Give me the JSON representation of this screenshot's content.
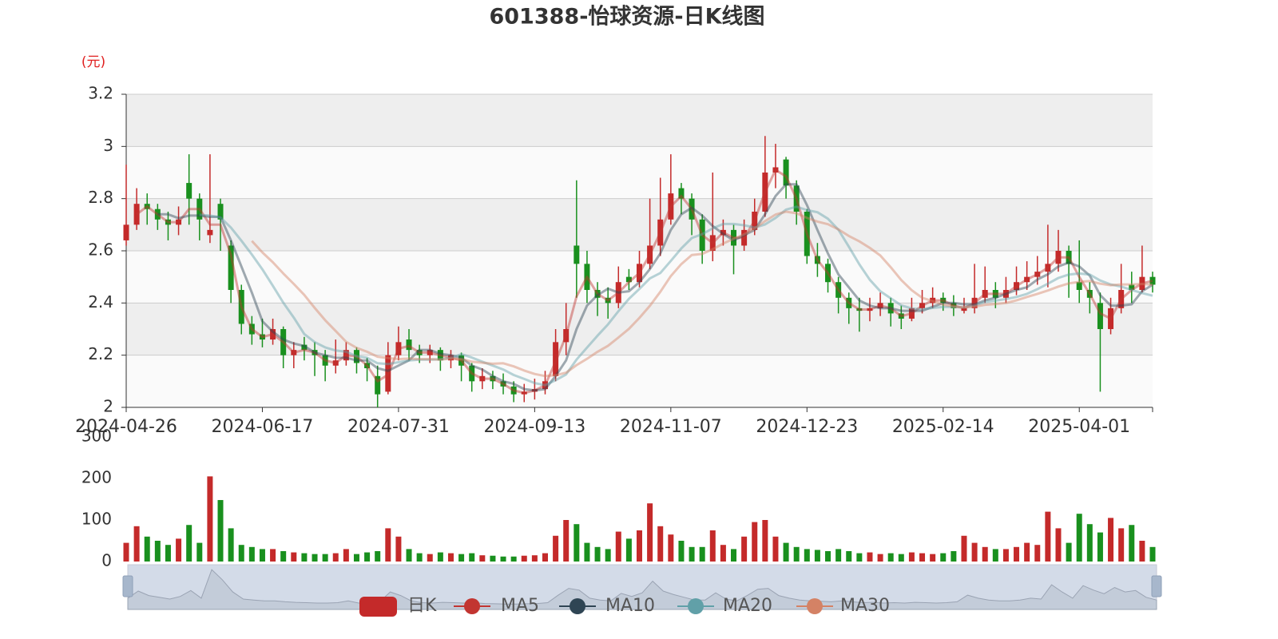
{
  "chart_data": {
    "type": "candlestick",
    "title": "601388-怡球资源-日K线图",
    "y_label": "(元)",
    "categories": [
      "2024-04-26",
      null,
      null,
      null,
      null,
      null,
      null,
      null,
      null,
      null,
      null,
      null,
      null,
      "2024-06-17",
      null,
      null,
      null,
      null,
      null,
      null,
      null,
      null,
      null,
      null,
      null,
      null,
      "2024-07-31",
      null,
      null,
      null,
      null,
      null,
      null,
      null,
      null,
      null,
      null,
      null,
      null,
      "2024-09-13",
      null,
      null,
      null,
      null,
      null,
      null,
      null,
      null,
      null,
      null,
      null,
      null,
      "2024-11-07",
      null,
      null,
      null,
      null,
      null,
      null,
      null,
      null,
      null,
      null,
      null,
      null,
      "2024-12-23",
      null,
      null,
      null,
      null,
      null,
      null,
      null,
      null,
      null,
      null,
      null,
      null,
      "2025-02-14",
      null,
      null,
      null,
      null,
      null,
      null,
      null,
      null,
      null,
      null,
      null,
      null,
      "2025-04-01",
      null,
      null,
      null,
      null,
      null,
      null,
      null
    ],
    "candles": {
      "name": "日K",
      "up_color": "#c42a2a",
      "down_color": "#19901e",
      "open": [
        2.64,
        2.7,
        2.78,
        2.76,
        2.72,
        2.7,
        2.86,
        2.8,
        2.66,
        2.78,
        2.62,
        2.45,
        2.32,
        2.28,
        2.26,
        2.3,
        2.2,
        2.24,
        2.22,
        2.2,
        2.16,
        2.18,
        2.22,
        2.17,
        2.12,
        2.06,
        2.2,
        2.26,
        2.22,
        2.2,
        2.22,
        2.18,
        2.2,
        2.16,
        2.1,
        2.12,
        2.1,
        2.08,
        2.05,
        2.06,
        2.07,
        2.12,
        2.25,
        2.62,
        2.55,
        2.45,
        2.42,
        2.4,
        2.5,
        2.48,
        2.55,
        2.62,
        2.72,
        2.84,
        2.8,
        2.72,
        2.6,
        2.66,
        2.68,
        2.62,
        2.68,
        2.75,
        2.9,
        2.95,
        2.85,
        2.75,
        2.58,
        2.55,
        2.48,
        2.42,
        2.38,
        2.37,
        2.38,
        2.4,
        2.36,
        2.34,
        2.38,
        2.4,
        2.42,
        2.4,
        2.37,
        2.38,
        2.42,
        2.45,
        2.42,
        2.45,
        2.48,
        2.5,
        2.52,
        2.55,
        2.6,
        2.48,
        2.45,
        2.4,
        2.3,
        2.38,
        2.47,
        2.45,
        2.5
      ],
      "close": [
        2.7,
        2.78,
        2.76,
        2.72,
        2.7,
        2.72,
        2.8,
        2.72,
        2.68,
        2.72,
        2.45,
        2.32,
        2.28,
        2.26,
        2.3,
        2.2,
        2.22,
        2.22,
        2.2,
        2.16,
        2.18,
        2.22,
        2.17,
        2.15,
        2.05,
        2.2,
        2.25,
        2.22,
        2.2,
        2.22,
        2.18,
        2.2,
        2.16,
        2.1,
        2.12,
        2.1,
        2.08,
        2.05,
        2.06,
        2.07,
        2.1,
        2.25,
        2.3,
        2.55,
        2.45,
        2.42,
        2.4,
        2.48,
        2.48,
        2.55,
        2.62,
        2.72,
        2.82,
        2.8,
        2.72,
        2.6,
        2.66,
        2.68,
        2.62,
        2.68,
        2.75,
        2.9,
        2.92,
        2.85,
        2.75,
        2.58,
        2.55,
        2.48,
        2.42,
        2.38,
        2.37,
        2.38,
        2.4,
        2.36,
        2.34,
        2.38,
        2.4,
        2.42,
        2.4,
        2.38,
        2.38,
        2.42,
        2.45,
        2.42,
        2.45,
        2.48,
        2.5,
        2.52,
        2.55,
        2.6,
        2.55,
        2.45,
        2.42,
        2.3,
        2.38,
        2.45,
        2.45,
        2.5,
        2.47
      ],
      "low": [
        2.62,
        2.68,
        2.7,
        2.68,
        2.64,
        2.66,
        2.7,
        2.64,
        2.63,
        2.6,
        2.4,
        2.28,
        2.24,
        2.23,
        2.24,
        2.15,
        2.15,
        2.18,
        2.12,
        2.1,
        2.13,
        2.16,
        2.13,
        2.1,
        2.0,
        2.05,
        2.18,
        2.18,
        2.17,
        2.17,
        2.14,
        2.15,
        2.1,
        2.06,
        2.07,
        2.07,
        2.05,
        2.02,
        2.02,
        2.03,
        2.05,
        2.1,
        2.2,
        2.42,
        2.4,
        2.35,
        2.34,
        2.38,
        2.45,
        2.46,
        2.53,
        2.58,
        2.7,
        2.74,
        2.66,
        2.55,
        2.56,
        2.62,
        2.51,
        2.6,
        2.66,
        2.73,
        2.84,
        2.8,
        2.7,
        2.55,
        2.5,
        2.44,
        2.36,
        2.32,
        2.29,
        2.33,
        2.35,
        2.31,
        2.3,
        2.33,
        2.36,
        2.38,
        2.37,
        2.35,
        2.36,
        2.36,
        2.4,
        2.38,
        2.4,
        2.43,
        2.45,
        2.47,
        2.46,
        2.52,
        2.42,
        2.4,
        2.36,
        2.06,
        2.28,
        2.36,
        2.4,
        2.44,
        2.44
      ],
      "high": [
        2.93,
        2.84,
        2.82,
        2.78,
        2.75,
        2.77,
        2.97,
        2.82,
        2.97,
        2.8,
        2.64,
        2.47,
        2.35,
        2.34,
        2.34,
        2.31,
        2.25,
        2.27,
        2.25,
        2.22,
        2.26,
        2.25,
        2.23,
        2.19,
        2.16,
        2.25,
        2.31,
        2.3,
        2.24,
        2.24,
        2.23,
        2.22,
        2.21,
        2.17,
        2.15,
        2.14,
        2.13,
        2.1,
        2.09,
        2.11,
        2.14,
        2.3,
        2.4,
        2.87,
        2.6,
        2.48,
        2.46,
        2.54,
        2.53,
        2.6,
        2.8,
        2.88,
        2.97,
        2.86,
        2.82,
        2.74,
        2.9,
        2.72,
        2.7,
        2.72,
        2.8,
        3.04,
        3.01,
        2.96,
        2.87,
        2.76,
        2.63,
        2.57,
        2.5,
        2.44,
        2.42,
        2.42,
        2.44,
        2.42,
        2.39,
        2.42,
        2.45,
        2.46,
        2.44,
        2.43,
        2.42,
        2.55,
        2.54,
        2.48,
        2.5,
        2.54,
        2.56,
        2.58,
        2.7,
        2.68,
        2.62,
        2.64,
        2.48,
        2.44,
        2.42,
        2.55,
        2.52,
        2.62,
        2.52
      ]
    },
    "series": [
      {
        "name": "MA5",
        "color": "#c23531",
        "values": [
          null,
          2.74,
          2.77,
          2.74,
          2.71,
          2.71,
          2.76,
          2.76,
          2.7,
          2.7,
          2.585,
          2.385,
          2.3,
          2.27,
          2.28,
          2.25,
          2.21,
          2.22,
          2.21,
          2.18,
          2.17,
          2.2,
          2.195,
          2.16,
          2.1,
          2.125,
          2.225,
          2.235,
          2.21,
          2.21,
          2.2,
          2.19,
          2.18,
          2.13,
          2.11,
          2.11,
          2.09,
          2.065,
          2.055,
          2.065,
          2.085,
          2.175,
          2.275,
          2.425,
          2.5,
          2.435,
          2.41,
          2.44,
          2.48,
          2.515,
          2.585,
          2.67,
          2.77,
          2.81,
          2.76,
          2.66,
          2.63,
          2.67,
          2.65,
          2.65,
          2.715,
          2.825,
          2.91,
          2.885,
          2.8,
          2.665,
          2.565,
          2.515,
          2.45,
          2.4,
          2.375,
          2.375,
          2.39,
          2.38,
          2.35,
          2.36,
          2.39,
          2.41,
          2.41,
          2.39,
          2.38,
          2.4,
          2.435,
          2.435,
          2.435,
          2.465,
          2.49,
          2.51,
          2.535,
          2.575,
          2.575,
          2.5,
          2.435,
          2.36,
          2.34,
          2.415,
          2.45,
          2.475,
          2.485
        ]
      },
      {
        "name": "MA10",
        "color": "#2f4554",
        "values": [
          null,
          null,
          null,
          2.74,
          2.74,
          2.725,
          2.735,
          2.735,
          2.73,
          2.73,
          2.64,
          2.54,
          2.44,
          2.33,
          2.29,
          2.26,
          2.245,
          2.235,
          2.21,
          2.2,
          2.19,
          2.19,
          2.18,
          2.18,
          2.15,
          2.14,
          2.16,
          2.18,
          2.22,
          2.22,
          2.205,
          2.2,
          2.19,
          2.16,
          2.145,
          2.12,
          2.1,
          2.09,
          2.07,
          2.065,
          2.07,
          2.12,
          2.18,
          2.3,
          2.39,
          2.43,
          2.455,
          2.44,
          2.445,
          2.48,
          2.53,
          2.59,
          2.68,
          2.74,
          2.765,
          2.735,
          2.695,
          2.665,
          2.64,
          2.66,
          2.68,
          2.74,
          2.81,
          2.855,
          2.855,
          2.775,
          2.68,
          2.59,
          2.51,
          2.46,
          2.41,
          2.39,
          2.38,
          2.38,
          2.37,
          2.37,
          2.37,
          2.385,
          2.4,
          2.4,
          2.395,
          2.395,
          2.41,
          2.42,
          2.435,
          2.45,
          2.46,
          2.49,
          2.51,
          2.54,
          2.555,
          2.54,
          2.505,
          2.43,
          2.39,
          2.39,
          2.395,
          2.445,
          2.47
        ]
      },
      {
        "name": "MA20",
        "color": "#61a0a8",
        "values": [
          null,
          null,
          null,
          null,
          null,
          null,
          null,
          2.738,
          2.735,
          2.728,
          2.689,
          2.639,
          2.586,
          2.529,
          2.466,
          2.401,
          2.344,
          2.281,
          2.25,
          2.23,
          2.218,
          2.213,
          2.196,
          2.19,
          2.169,
          2.166,
          2.173,
          2.18,
          2.183,
          2.183,
          2.184,
          2.19,
          2.204,
          2.191,
          2.175,
          2.16,
          2.145,
          2.124,
          2.109,
          2.093,
          2.085,
          2.104,
          2.126,
          2.183,
          2.229,
          2.275,
          2.318,
          2.369,
          2.416,
          2.454,
          2.494,
          2.515,
          2.561,
          2.609,
          2.649,
          2.664,
          2.686,
          2.703,
          2.703,
          2.698,
          2.689,
          2.701,
          2.726,
          2.758,
          2.769,
          2.756,
          2.748,
          2.723,
          2.681,
          2.616,
          2.548,
          2.489,
          2.445,
          2.418,
          2.391,
          2.379,
          2.376,
          2.381,
          2.385,
          2.385,
          2.383,
          2.39,
          2.404,
          2.409,
          2.415,
          2.423,
          2.435,
          2.453,
          2.474,
          2.496,
          2.509,
          2.513,
          2.509,
          2.486,
          2.471,
          2.463,
          2.45,
          2.438,
          2.428
        ]
      },
      {
        "name": "MA30",
        "color": "#d48265",
        "values": [
          null,
          null,
          null,
          null,
          null,
          null,
          null,
          null,
          null,
          null,
          null,
          null,
          2.638,
          2.594,
          2.556,
          2.513,
          2.473,
          2.431,
          2.381,
          2.334,
          2.293,
          2.251,
          2.228,
          2.213,
          2.194,
          2.189,
          2.185,
          2.187,
          2.185,
          2.185,
          2.183,
          2.187,
          2.185,
          2.175,
          2.171,
          2.167,
          2.169,
          2.157,
          2.141,
          2.128,
          2.12,
          2.123,
          2.133,
          2.162,
          2.186,
          2.213,
          2.236,
          2.268,
          2.301,
          2.343,
          2.389,
          2.443,
          2.503,
          2.549,
          2.584,
          2.588,
          2.606,
          2.628,
          2.646,
          2.663,
          2.685,
          2.714,
          2.739,
          2.75,
          2.744,
          2.726,
          2.712,
          2.702,
          2.682,
          2.657,
          2.636,
          2.611,
          2.582,
          2.537,
          2.488,
          2.449,
          2.42,
          2.407,
          2.394,
          2.386,
          2.383,
          2.386,
          2.393,
          2.396,
          2.4,
          2.41,
          2.423,
          2.435,
          2.448,
          2.463,
          2.475,
          2.481,
          2.484,
          2.474,
          2.468,
          2.471,
          2.471,
          2.473,
          2.47
        ]
      }
    ],
    "ylim": [
      2,
      3.2
    ],
    "yticks": [
      2,
      2.2,
      2.4,
      2.6,
      2.8,
      3,
      3.2
    ],
    "grid": true,
    "volume": {
      "values": [
        45,
        85,
        60,
        50,
        40,
        55,
        88,
        45,
        205,
        148,
        80,
        40,
        35,
        30,
        30,
        25,
        22,
        20,
        18,
        18,
        20,
        30,
        18,
        22,
        25,
        80,
        60,
        30,
        20,
        18,
        22,
        20,
        18,
        20,
        15,
        14,
        12,
        12,
        14,
        15,
        20,
        62,
        100,
        90,
        45,
        35,
        30,
        72,
        55,
        75,
        140,
        85,
        65,
        50,
        35,
        35,
        75,
        40,
        30,
        60,
        95,
        100,
        60,
        45,
        35,
        30,
        28,
        25,
        30,
        25,
        20,
        22,
        18,
        20,
        18,
        22,
        20,
        18,
        20,
        25,
        62,
        45,
        35,
        30,
        30,
        35,
        45,
        40,
        120,
        80,
        45,
        115,
        90,
        70,
        105,
        80,
        88,
        50,
        35
      ],
      "ylim": [
        0,
        300
      ],
      "yticks": [
        0,
        100,
        200,
        300
      ]
    }
  }
}
